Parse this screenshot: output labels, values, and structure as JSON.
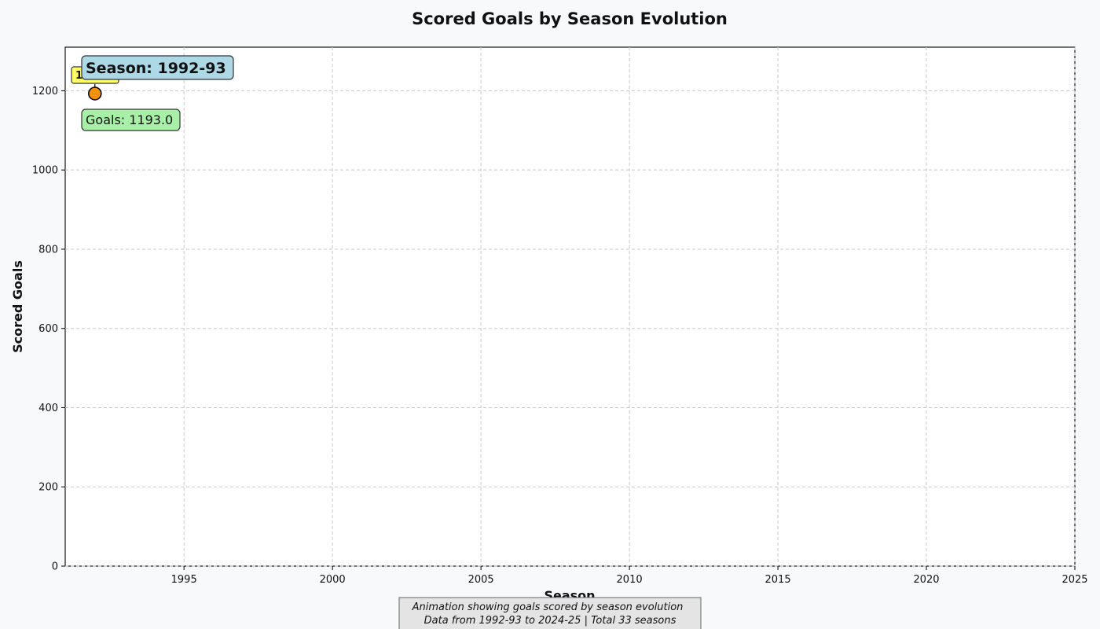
{
  "chart_data": {
    "type": "scatter",
    "title": "Scored Goals by Season Evolution",
    "xlabel": "Season",
    "ylabel": "Scored Goals",
    "xlim": [
      1991,
      2025
    ],
    "ylim": [
      0,
      1310
    ],
    "xticks": [
      1995,
      2000,
      2005,
      2010,
      2015,
      2020,
      2025
    ],
    "yticks": [
      0,
      200,
      400,
      600,
      800,
      1000,
      1200
    ],
    "grid": true,
    "points": [
      {
        "x": 1992,
        "y": 1193.0,
        "season": "1992-93"
      }
    ],
    "value_label": "1193.0",
    "season_label": "Season: 1992-93",
    "goals_label": "Goals: 1193.0",
    "caption_line1": "Animation showing goals scored by season evolution",
    "caption_line2": "Data from 1992-93 to 2024-25 | Total 33 seasons",
    "colors": {
      "point": "#f0900c",
      "season_box": "#add8e6",
      "goals_box": "#a8f0a8",
      "value_box": "#ffff66",
      "caption_box": "#e4e4e4"
    }
  }
}
